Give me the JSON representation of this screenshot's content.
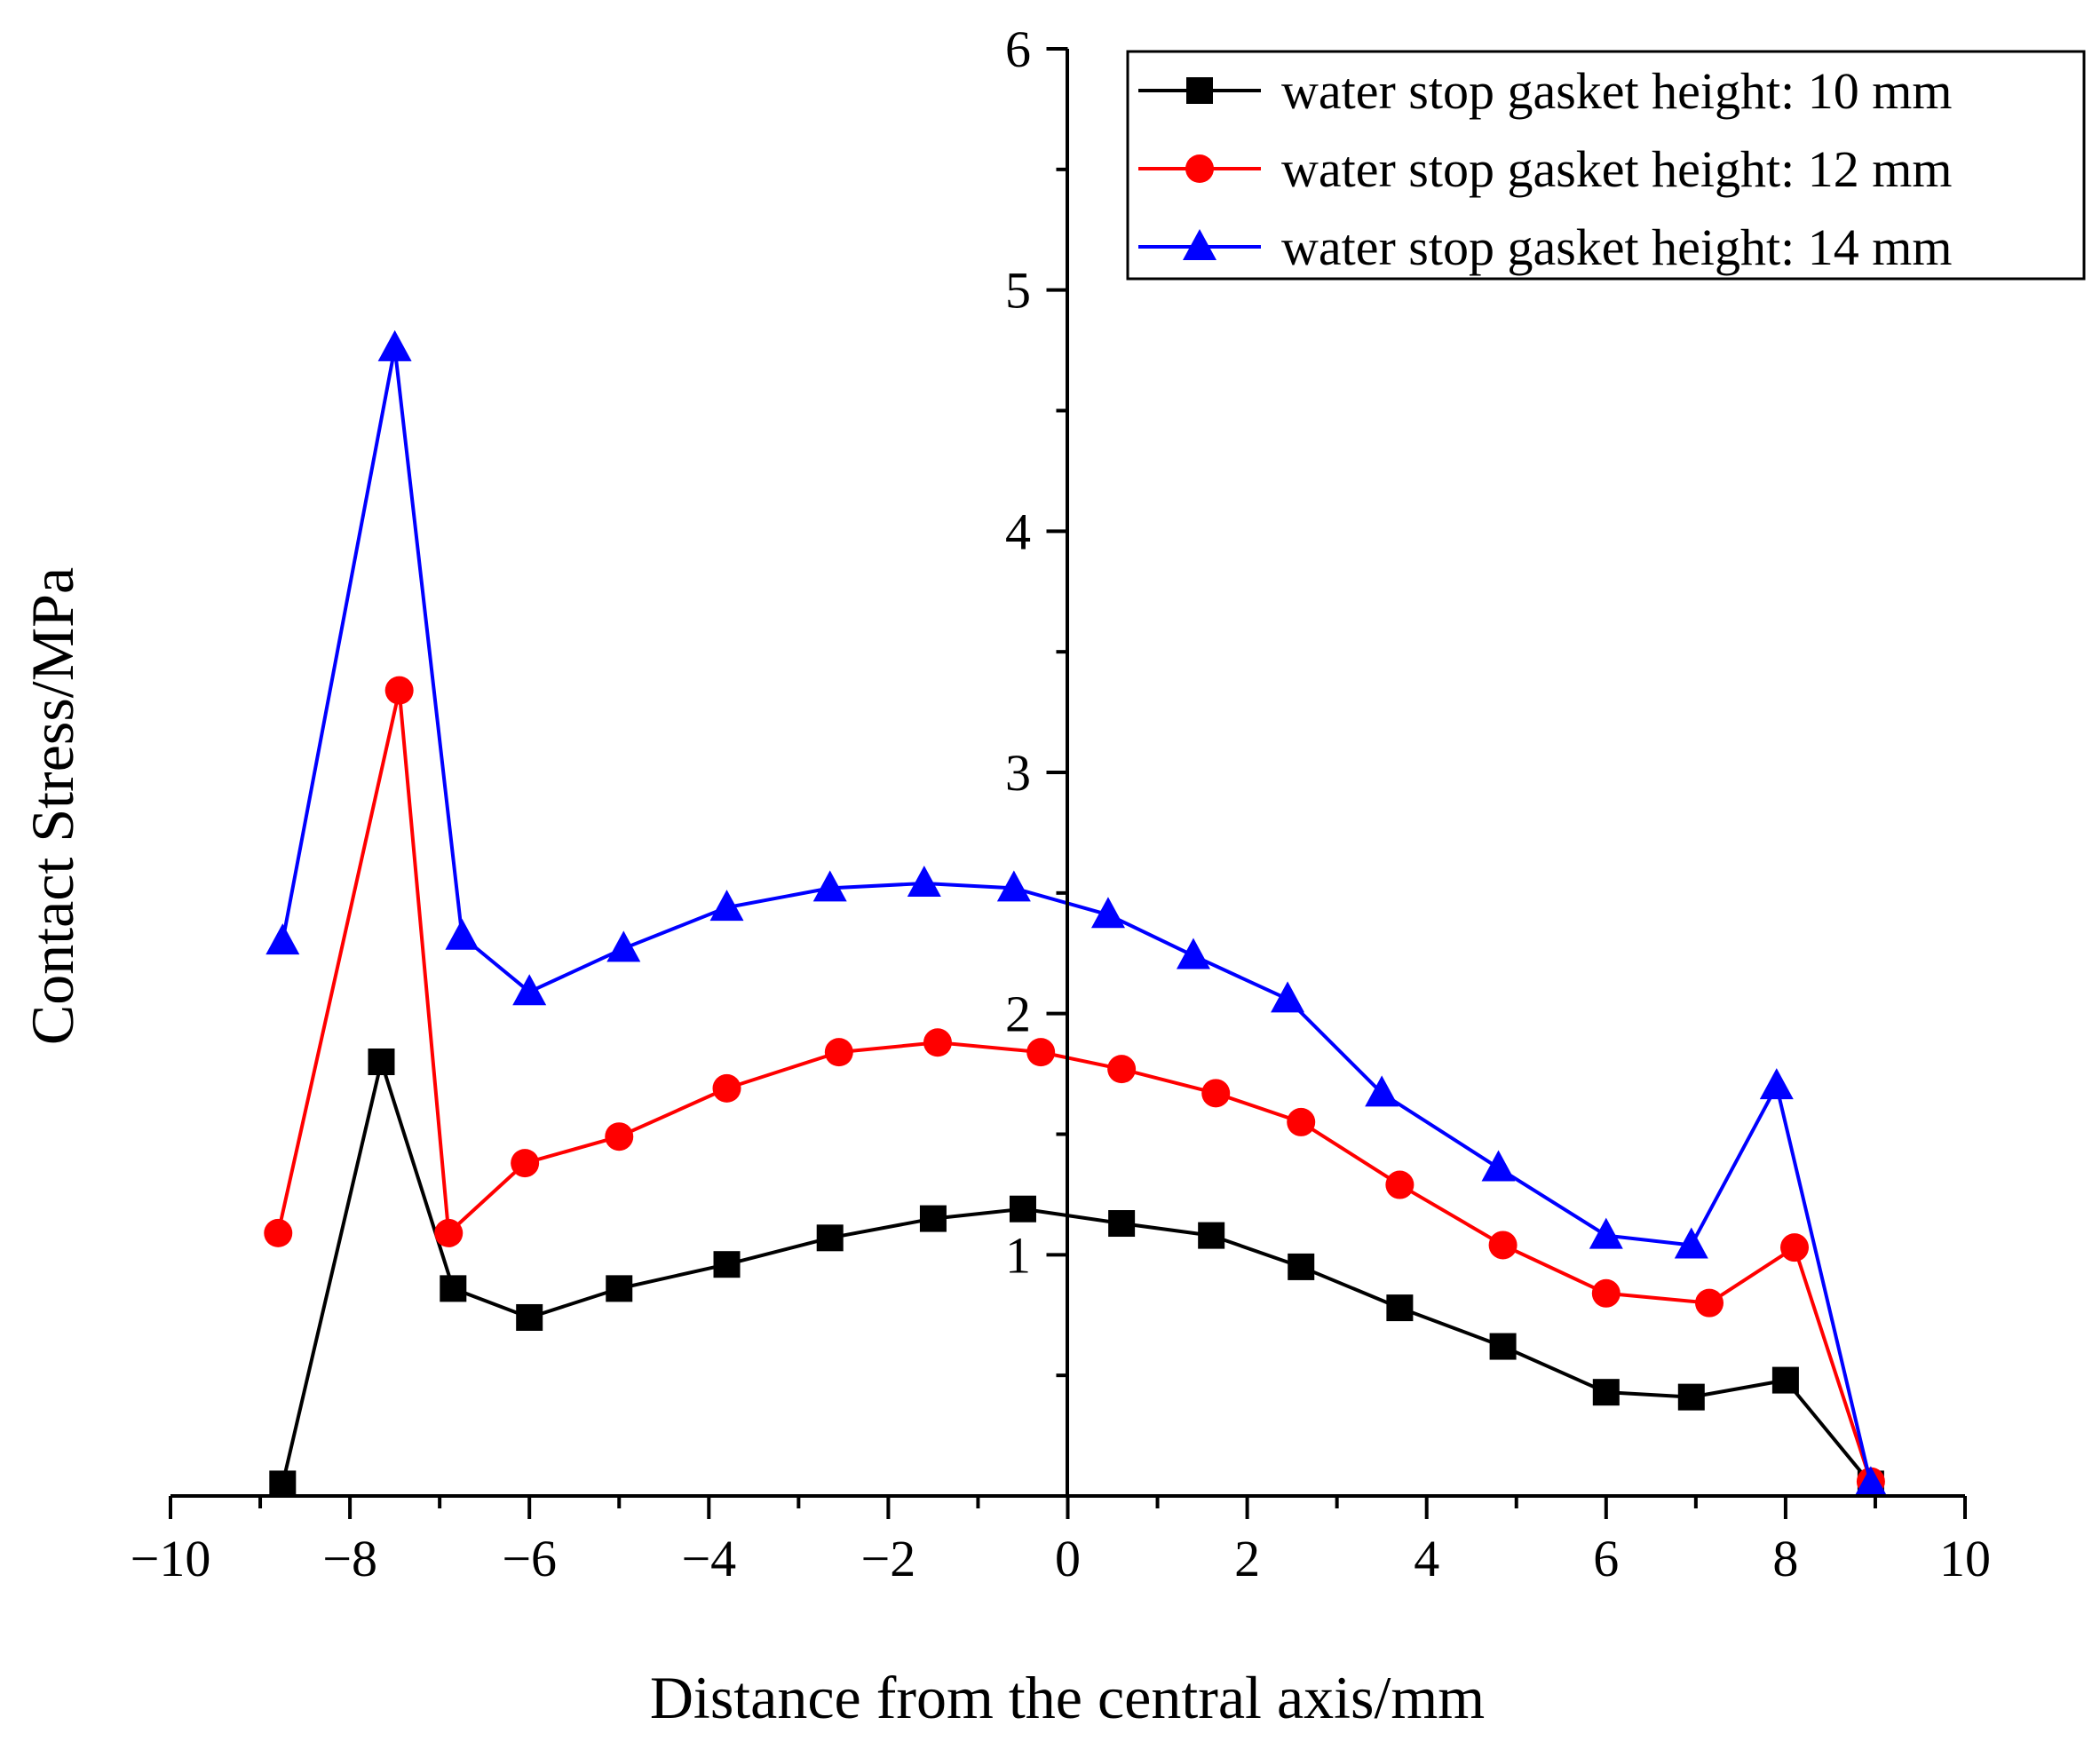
{
  "chart_data": {
    "type": "line",
    "title": "",
    "xlabel": "Distance from the central axis/mm",
    "ylabel": "Contact Stress/MPa",
    "xlim": [
      -10,
      10
    ],
    "ylim": [
      0,
      6
    ],
    "x_ticks": [
      -10,
      -8,
      -6,
      -4,
      -2,
      0,
      2,
      4,
      6,
      8,
      10
    ],
    "x_tick_labels": [
      "−10",
      "−8",
      "−6",
      "−4",
      "−2",
      "0",
      "2",
      "4",
      "6",
      "8",
      "10"
    ],
    "y_ticks": [
      1,
      2,
      3,
      4,
      5,
      6
    ],
    "y_tick_labels": [
      "1",
      "2",
      "3",
      "4",
      "5",
      "6"
    ],
    "y_axis_at_x": 0,
    "grid": false,
    "legend_position": "top-right",
    "series": [
      {
        "name": "water stop gasket height: 10 mm",
        "color": "#000000",
        "marker": "square",
        "x": [
          -8.75,
          -7.65,
          -6.85,
          -6.0,
          -5.0,
          -3.8,
          -2.65,
          -1.5,
          -0.5,
          0.6,
          1.6,
          2.6,
          3.7,
          4.85,
          6.0,
          6.95,
          8.0,
          8.95
        ],
        "y": [
          0.05,
          1.8,
          0.86,
          0.74,
          0.86,
          0.96,
          1.07,
          1.15,
          1.19,
          1.13,
          1.08,
          0.95,
          0.78,
          0.62,
          0.43,
          0.41,
          0.48,
          0.05
        ]
      },
      {
        "name": "water stop gasket height: 12 mm",
        "color": "#ff0000",
        "marker": "circle",
        "x": [
          -8.8,
          -7.45,
          -6.9,
          -6.05,
          -5.0,
          -3.8,
          -2.55,
          -1.45,
          -0.3,
          0.6,
          1.65,
          2.6,
          3.7,
          4.85,
          6.0,
          7.15,
          8.1,
          8.95
        ],
        "y": [
          1.09,
          3.34,
          1.09,
          1.38,
          1.49,
          1.69,
          1.84,
          1.88,
          1.84,
          1.77,
          1.67,
          1.55,
          1.29,
          1.04,
          0.84,
          0.8,
          1.03,
          0.06
        ]
      },
      {
        "name": "water stop gasket height: 14 mm",
        "color": "#0000ff",
        "marker": "triangle",
        "x": [
          -8.75,
          -7.5,
          -6.75,
          -6.0,
          -4.95,
          -3.8,
          -2.65,
          -1.6,
          -0.6,
          0.45,
          1.4,
          2.45,
          3.5,
          4.8,
          6.0,
          6.95,
          7.9,
          8.95
        ],
        "y": [
          2.3,
          4.76,
          2.32,
          2.09,
          2.27,
          2.44,
          2.52,
          2.54,
          2.52,
          2.41,
          2.24,
          2.06,
          1.67,
          1.36,
          1.08,
          1.04,
          1.7,
          0.05
        ]
      }
    ]
  }
}
